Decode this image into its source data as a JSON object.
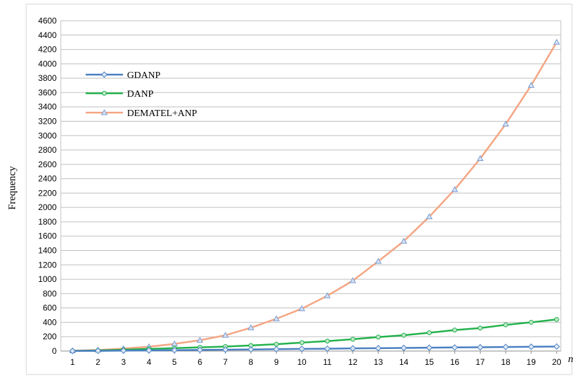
{
  "chart_data": {
    "type": "line",
    "title": "",
    "xlabel": "n",
    "ylabel": "Frequency",
    "x": [
      1,
      2,
      3,
      4,
      5,
      6,
      7,
      8,
      9,
      10,
      11,
      12,
      13,
      14,
      15,
      16,
      17,
      18,
      19,
      20
    ],
    "xlim": [
      1,
      20
    ],
    "ylim": [
      0,
      4600
    ],
    "yticks": [
      0,
      200,
      400,
      600,
      800,
      1000,
      1200,
      1400,
      1600,
      1800,
      2000,
      2200,
      2400,
      2600,
      2800,
      3000,
      3200,
      3400,
      3600,
      3800,
      4000,
      4200,
      4400,
      4600
    ],
    "grid": true,
    "legend_position": "top-left",
    "series": [
      {
        "name": "GDANP",
        "color": "#4a7fc1",
        "marker": "diamond",
        "values": [
          1,
          3,
          6,
          9,
          12,
          16,
          19,
          22,
          26,
          30,
          33,
          37,
          40,
          43,
          47,
          50,
          53,
          57,
          60,
          63
        ]
      },
      {
        "name": "DANP",
        "color": "#22b14c",
        "marker": "circle",
        "values": [
          2,
          8,
          18,
          30,
          40,
          52,
          63,
          78,
          95,
          118,
          138,
          165,
          195,
          220,
          255,
          292,
          320,
          365,
          400,
          440
        ]
      },
      {
        "name": "DEMATEL+ANP",
        "color": "#f4a582",
        "marker": "triangle",
        "values": [
          5,
          15,
          35,
          60,
          100,
          150,
          220,
          325,
          450,
          590,
          770,
          980,
          1250,
          1530,
          1870,
          2250,
          2680,
          3160,
          3700,
          4300
        ]
      }
    ]
  }
}
